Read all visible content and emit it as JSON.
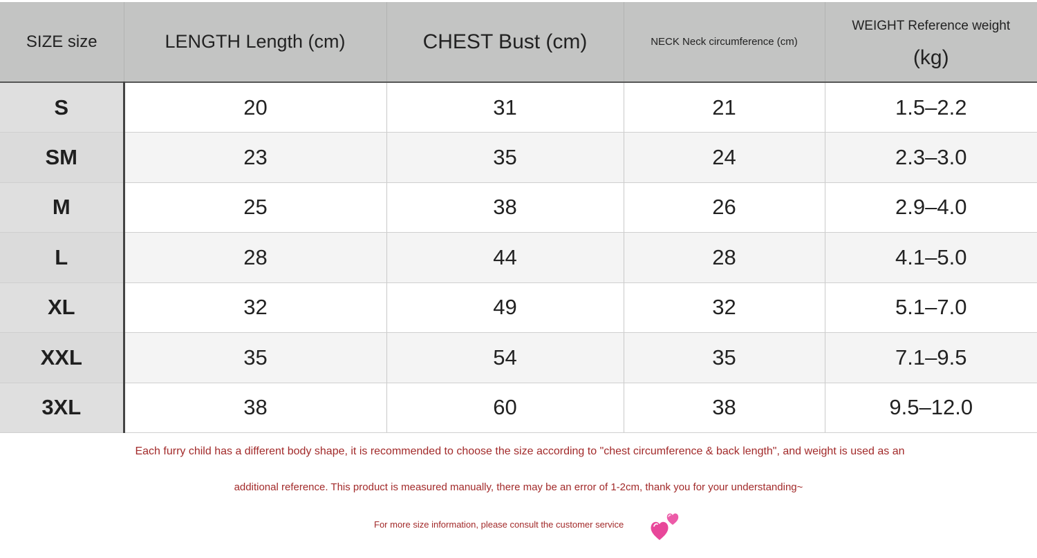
{
  "table": {
    "headers": {
      "size": "SIZE size",
      "length": "LENGTH Length (cm)",
      "chest": "CHEST Bust (cm)",
      "neck": "NECK Neck circumference (cm)",
      "weight_line1": "WEIGHT Reference weight",
      "weight_line2": "(kg)"
    },
    "rows": [
      {
        "size": "S",
        "length": "20",
        "chest": "31",
        "neck": "21",
        "weight": "1.5–2.2"
      },
      {
        "size": "SM",
        "length": "23",
        "chest": "35",
        "neck": "24",
        "weight": "2.3–3.0"
      },
      {
        "size": "M",
        "length": "25",
        "chest": "38",
        "neck": "26",
        "weight": "2.9–4.0"
      },
      {
        "size": "L",
        "length": "28",
        "chest": "44",
        "neck": "28",
        "weight": "4.1–5.0"
      },
      {
        "size": "XL",
        "length": "32",
        "chest": "49",
        "neck": "32",
        "weight": "5.1–7.0"
      },
      {
        "size": "XXL",
        "length": "35",
        "chest": "54",
        "neck": "35",
        "weight": "7.1–9.5"
      },
      {
        "size": "3XL",
        "length": "38",
        "chest": "60",
        "neck": "38",
        "weight": "9.5–12.0"
      }
    ]
  },
  "notes": {
    "line1": "Each furry child has a different body shape, it is recommended to choose the size according to \"chest circumference & back length\", and weight is used as an",
    "line2": "additional reference. This product is measured manually, there may be an error of 1-2cm, thank you for your understanding~",
    "line3": "For more size information, please consult the customer service"
  },
  "icons": {
    "heart": "two-hearts-icon"
  },
  "colors": {
    "header_bg": "#c3c4c3",
    "size_col_bg": "#dfdfdf",
    "note_text": "#a22a2a",
    "heart": "#e8479a"
  }
}
